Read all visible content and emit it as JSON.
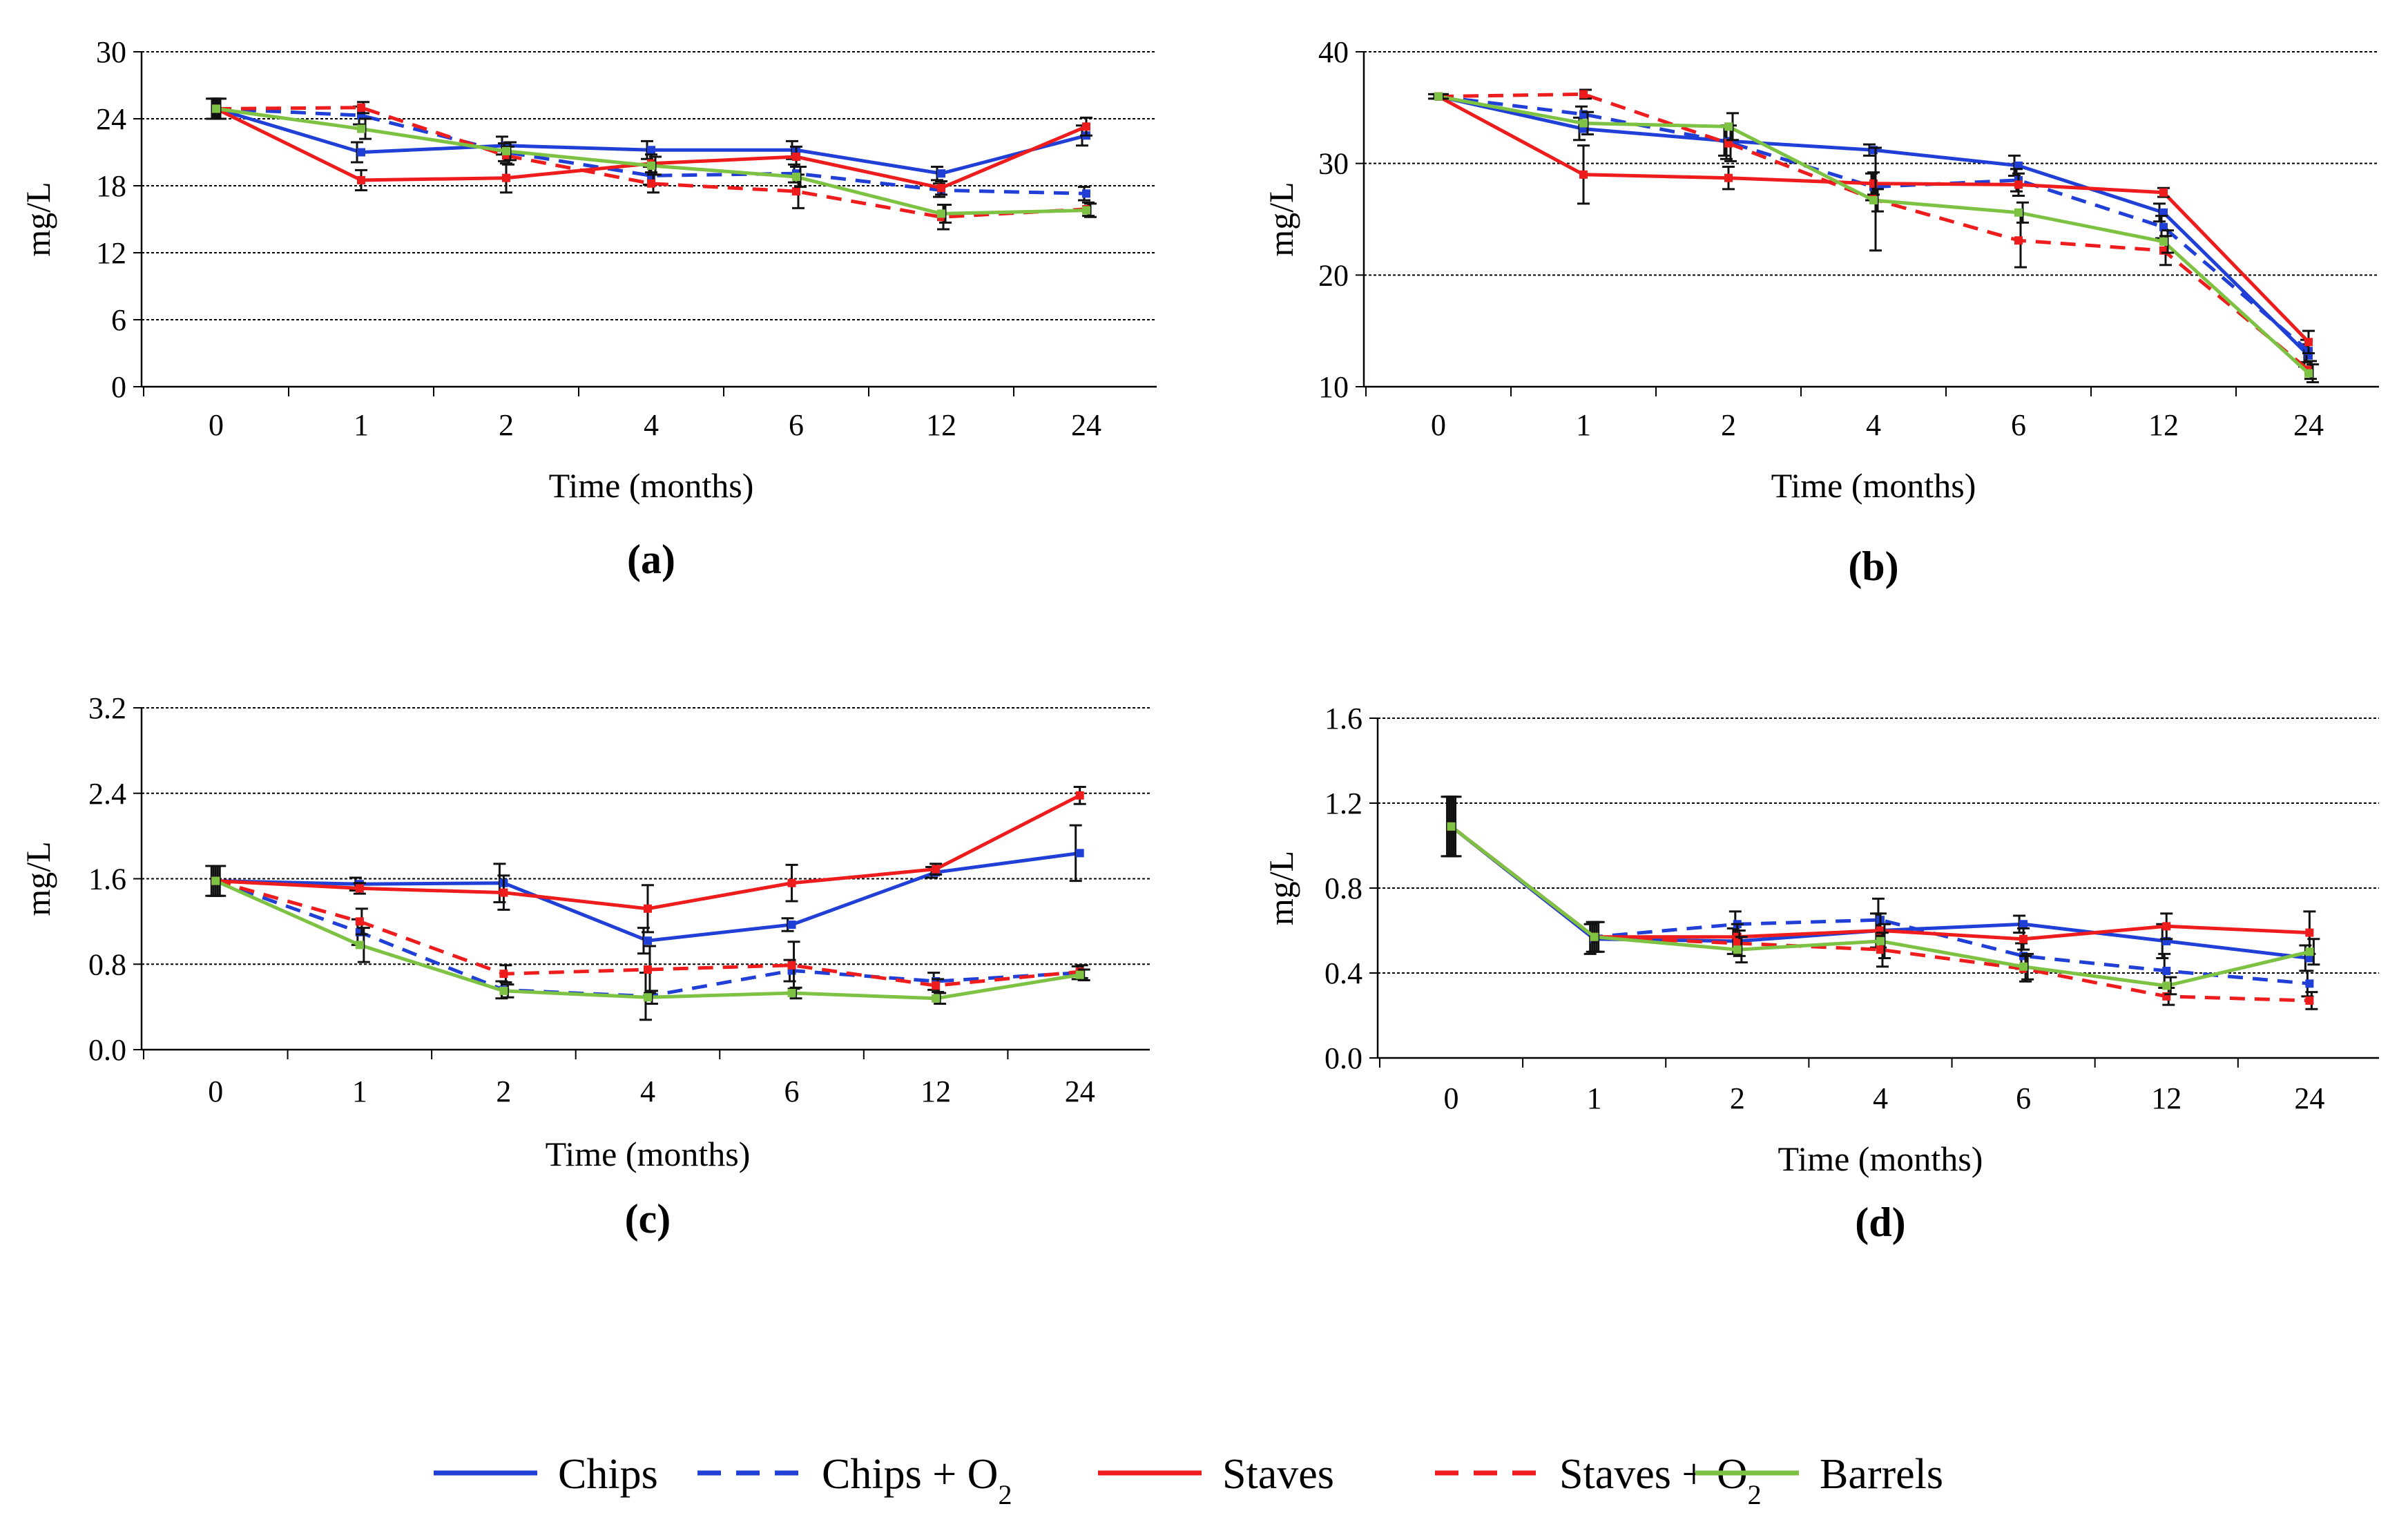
{
  "figure": {
    "legend": [
      {
        "label": "Chips",
        "sub": "",
        "color": "#1f3fd6",
        "dash": false
      },
      {
        "label": "Chips + O",
        "sub": "2",
        "color": "#1f3fd6",
        "dash": true
      },
      {
        "label": "Staves",
        "sub": "",
        "color": "#ee1c1c",
        "dash": false
      },
      {
        "label": "Staves + O",
        "sub": "2",
        "color": "#ee1c1c",
        "dash": true
      },
      {
        "label": "Barrels",
        "sub": "",
        "color": "#7dc242",
        "dash": false
      }
    ]
  },
  "chart_data": [
    {
      "type": "line",
      "panel_label": "(a)",
      "categories": [
        "0",
        "1",
        "2",
        "4",
        "6",
        "12",
        "24"
      ],
      "ylim": [
        0,
        30
      ],
      "yticks": [
        "0",
        "6",
        "12",
        "18",
        "24",
        "30"
      ],
      "xlabel": "Time (months)",
      "ylabel": "mg/L",
      "series": [
        {
          "name": "Chips",
          "values": [
            24.9,
            21.0,
            21.6,
            21.2,
            21.2,
            19.1,
            22.5
          ],
          "errors": [
            0.9,
            0.9,
            0.8,
            0.8,
            0.8,
            0.6,
            0.9
          ]
        },
        {
          "name": "Chips + O2",
          "values": [
            24.9,
            24.3,
            21.0,
            18.9,
            19.1,
            17.6,
            17.3
          ],
          "errors": [
            0.9,
            0.8,
            0.8,
            0.8,
            0.8,
            0.6,
            0.6
          ]
        },
        {
          "name": "Staves",
          "values": [
            24.9,
            18.5,
            18.7,
            20.0,
            20.6,
            17.8,
            23.3
          ],
          "errors": [
            0.9,
            0.9,
            1.3,
            0.8,
            0.9,
            0.6,
            0.8
          ]
        },
        {
          "name": "Staves + O2",
          "values": [
            24.9,
            25.0,
            20.7,
            18.2,
            17.5,
            15.2,
            15.9
          ],
          "errors": [
            0.9,
            0.5,
            0.8,
            0.8,
            1.5,
            1.1,
            0.6
          ]
        },
        {
          "name": "Barrels",
          "values": [
            24.9,
            23.1,
            21.1,
            19.8,
            18.8,
            15.5,
            15.8
          ],
          "errors": [
            0.9,
            0.9,
            0.8,
            0.8,
            0.9,
            0.8,
            0.6
          ]
        }
      ]
    },
    {
      "type": "line",
      "panel_label": "(b)",
      "categories": [
        "0",
        "1",
        "2",
        "4",
        "6",
        "12",
        "24"
      ],
      "ylim": [
        10,
        40
      ],
      "yticks": [
        "10",
        "20",
        "30",
        "40"
      ],
      "xlabel": "Time (months)",
      "ylabel": "mg/L",
      "series": [
        {
          "name": "Chips",
          "values": [
            36.0,
            33.1,
            32.0,
            31.2,
            29.8,
            25.6,
            12.8
          ],
          "errors": [
            0.2,
            1.0,
            1.3,
            0.5,
            0.9,
            0.8,
            1.0
          ]
        },
        {
          "name": "Chips + O2",
          "values": [
            36.0,
            34.4,
            31.9,
            27.9,
            28.5,
            24.3,
            13.2
          ],
          "errors": [
            0.2,
            0.7,
            1.5,
            1.2,
            1.0,
            1.0,
            1.0
          ]
        },
        {
          "name": "Staves",
          "values": [
            36.0,
            29.0,
            28.7,
            28.2,
            28.1,
            27.4,
            14.0
          ],
          "errors": [
            0.2,
            2.6,
            1.0,
            1.0,
            1.0,
            0.4,
            1.0
          ]
        },
        {
          "name": "Staves + O2",
          "values": [
            36.0,
            36.2,
            31.8,
            26.8,
            23.1,
            22.2,
            11.5
          ],
          "errors": [
            0.2,
            0.4,
            1.6,
            4.6,
            2.4,
            1.3,
            0.8
          ]
        },
        {
          "name": "Barrels",
          "values": [
            36.0,
            33.6,
            33.3,
            26.7,
            25.6,
            23.0,
            11.2
          ],
          "errors": [
            0.2,
            1.0,
            1.2,
            1.0,
            0.9,
            1.0,
            0.8
          ]
        }
      ]
    },
    {
      "type": "line",
      "panel_label": "(c)",
      "categories": [
        "0",
        "1",
        "2",
        "4",
        "6",
        "12",
        "24"
      ],
      "ylim": [
        0,
        3.2
      ],
      "yticks": [
        "0.0",
        "0.8",
        "1.6",
        "2.4",
        "3.2"
      ],
      "xlabel": "Time (months)",
      "ylabel": "mg/L",
      "series": [
        {
          "name": "Chips",
          "values": [
            1.58,
            1.55,
            1.56,
            1.02,
            1.17,
            1.66,
            1.84
          ],
          "errors": [
            0.14,
            0.06,
            0.18,
            0.12,
            0.06,
            0.05,
            0.26
          ]
        },
        {
          "name": "Chips + O2",
          "values": [
            1.58,
            1.1,
            0.56,
            0.5,
            0.74,
            0.64,
            0.72
          ],
          "errors": [
            0.14,
            0.12,
            0.08,
            0.22,
            0.1,
            0.08,
            0.06
          ]
        },
        {
          "name": "Staves",
          "values": [
            1.58,
            1.51,
            1.47,
            1.32,
            1.56,
            1.69,
            2.38
          ],
          "errors": [
            0.14,
            0.05,
            0.16,
            0.22,
            0.17,
            0.05,
            0.08
          ]
        },
        {
          "name": "Staves + O2",
          "values": [
            1.58,
            1.2,
            0.71,
            0.75,
            0.79,
            0.6,
            0.73
          ],
          "errors": [
            0.14,
            0.12,
            0.08,
            0.22,
            0.22,
            0.06,
            0.06
          ]
        },
        {
          "name": "Barrels",
          "values": [
            1.58,
            0.98,
            0.55,
            0.49,
            0.53,
            0.48,
            0.7
          ],
          "errors": [
            0.14,
            0.16,
            0.06,
            0.06,
            0.05,
            0.05,
            0.05
          ]
        }
      ]
    },
    {
      "type": "line",
      "panel_label": "(d)",
      "categories": [
        "0",
        "1",
        "2",
        "4",
        "6",
        "12",
        "24"
      ],
      "ylim": [
        0,
        1.6
      ],
      "yticks": [
        "0.0",
        "0.4",
        "0.8",
        "1.2",
        "1.6"
      ],
      "xlabel": "Time (months)",
      "ylabel": "mg/L",
      "series": [
        {
          "name": "Chips",
          "values": [
            1.09,
            0.56,
            0.55,
            0.6,
            0.63,
            0.55,
            0.47
          ],
          "errors": [
            0.14,
            0.07,
            0.06,
            0.08,
            0.04,
            0.08,
            0.06
          ]
        },
        {
          "name": "Chips + O2",
          "values": [
            1.09,
            0.57,
            0.63,
            0.65,
            0.48,
            0.41,
            0.35
          ],
          "errors": [
            0.14,
            0.07,
            0.06,
            0.1,
            0.06,
            0.08,
            0.06
          ]
        },
        {
          "name": "Staves",
          "values": [
            1.09,
            0.57,
            0.57,
            0.6,
            0.56,
            0.62,
            0.59
          ],
          "errors": [
            0.14,
            0.07,
            0.06,
            0.08,
            0.05,
            0.06,
            0.1
          ]
        },
        {
          "name": "Staves + O2",
          "values": [
            1.09,
            0.57,
            0.54,
            0.51,
            0.42,
            0.29,
            0.27
          ],
          "errors": [
            0.14,
            0.07,
            0.06,
            0.08,
            0.06,
            0.04,
            0.04
          ]
        },
        {
          "name": "Barrels",
          "values": [
            1.09,
            0.57,
            0.51,
            0.55,
            0.43,
            0.34,
            0.5
          ],
          "errors": [
            0.14,
            0.07,
            0.06,
            0.08,
            0.06,
            0.04,
            0.06
          ]
        }
      ]
    }
  ]
}
